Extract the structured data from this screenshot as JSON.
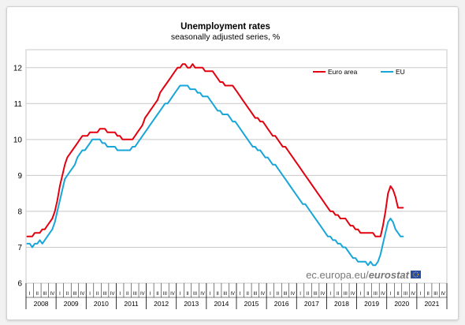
{
  "chart_data": {
    "type": "line",
    "title": "Unemployment rates",
    "subtitle": "seasonally adjusted series, %",
    "ylim": [
      6,
      12.5
    ],
    "yticks": [
      "6",
      "7",
      "8",
      "9",
      "10",
      "11",
      "12"
    ],
    "grid": "horizontal",
    "legend_position": "top-right",
    "x_start": "2008-01",
    "years": [
      "2008",
      "2009",
      "2010",
      "2011",
      "2012",
      "2013",
      "2014",
      "2015",
      "2016",
      "2017",
      "2018",
      "2019",
      "2020",
      "2021"
    ],
    "quarters": [
      "I",
      "II",
      "III",
      "IV"
    ],
    "watermark": {
      "domain": "ec.europa.eu/",
      "brand": "eurostat"
    },
    "series": [
      {
        "name": "Euro area",
        "color": "#e3000f",
        "values": [
          7.3,
          7.3,
          7.3,
          7.4,
          7.4,
          7.4,
          7.5,
          7.5,
          7.6,
          7.7,
          7.8,
          8.0,
          8.3,
          8.7,
          9.0,
          9.3,
          9.5,
          9.6,
          9.7,
          9.8,
          9.9,
          10.0,
          10.1,
          10.1,
          10.1,
          10.2,
          10.2,
          10.2,
          10.2,
          10.3,
          10.3,
          10.3,
          10.2,
          10.2,
          10.2,
          10.2,
          10.1,
          10.1,
          10.0,
          10.0,
          10.0,
          10.0,
          10.0,
          10.1,
          10.2,
          10.3,
          10.4,
          10.6,
          10.7,
          10.8,
          10.9,
          11.0,
          11.1,
          11.3,
          11.4,
          11.5,
          11.6,
          11.7,
          11.8,
          11.9,
          12.0,
          12.0,
          12.1,
          12.1,
          12.0,
          12.0,
          12.1,
          12.0,
          12.0,
          12.0,
          12.0,
          11.9,
          11.9,
          11.9,
          11.9,
          11.8,
          11.7,
          11.6,
          11.6,
          11.5,
          11.5,
          11.5,
          11.5,
          11.4,
          11.3,
          11.2,
          11.1,
          11.0,
          10.9,
          10.8,
          10.7,
          10.6,
          10.6,
          10.5,
          10.5,
          10.4,
          10.3,
          10.2,
          10.1,
          10.1,
          10.0,
          9.9,
          9.8,
          9.8,
          9.7,
          9.6,
          9.5,
          9.4,
          9.3,
          9.2,
          9.1,
          9.0,
          8.9,
          8.8,
          8.7,
          8.6,
          8.5,
          8.4,
          8.3,
          8.2,
          8.1,
          8.0,
          8.0,
          7.9,
          7.9,
          7.8,
          7.8,
          7.8,
          7.7,
          7.6,
          7.6,
          7.5,
          7.5,
          7.4,
          7.4,
          7.4,
          7.4,
          7.4,
          7.4,
          7.3,
          7.3,
          7.3,
          7.6,
          8.0,
          8.5,
          8.7,
          8.6,
          8.4,
          8.1,
          8.1,
          8.1
        ]
      },
      {
        "name": "EU",
        "color": "#18a6d9",
        "values": [
          7.1,
          7.1,
          7.0,
          7.1,
          7.1,
          7.2,
          7.1,
          7.2,
          7.3,
          7.4,
          7.5,
          7.7,
          8.0,
          8.3,
          8.6,
          8.9,
          9.0,
          9.1,
          9.2,
          9.3,
          9.5,
          9.6,
          9.7,
          9.7,
          9.8,
          9.9,
          10.0,
          10.0,
          10.0,
          10.0,
          9.9,
          9.9,
          9.8,
          9.8,
          9.8,
          9.8,
          9.7,
          9.7,
          9.7,
          9.7,
          9.7,
          9.7,
          9.8,
          9.8,
          9.9,
          10.0,
          10.1,
          10.2,
          10.3,
          10.4,
          10.5,
          10.6,
          10.7,
          10.8,
          10.9,
          11.0,
          11.0,
          11.1,
          11.2,
          11.3,
          11.4,
          11.5,
          11.5,
          11.5,
          11.5,
          11.4,
          11.4,
          11.4,
          11.3,
          11.3,
          11.2,
          11.2,
          11.2,
          11.1,
          11.0,
          10.9,
          10.8,
          10.8,
          10.7,
          10.7,
          10.7,
          10.6,
          10.5,
          10.5,
          10.4,
          10.3,
          10.2,
          10.1,
          10.0,
          9.9,
          9.8,
          9.8,
          9.7,
          9.7,
          9.6,
          9.5,
          9.5,
          9.4,
          9.3,
          9.3,
          9.2,
          9.1,
          9.0,
          8.9,
          8.8,
          8.7,
          8.6,
          8.5,
          8.4,
          8.3,
          8.2,
          8.2,
          8.1,
          8.0,
          7.9,
          7.8,
          7.7,
          7.6,
          7.5,
          7.4,
          7.3,
          7.3,
          7.2,
          7.2,
          7.1,
          7.1,
          7.0,
          7.0,
          6.9,
          6.8,
          6.7,
          6.7,
          6.6,
          6.6,
          6.6,
          6.6,
          6.5,
          6.6,
          6.5,
          6.5,
          6.6,
          6.8,
          7.1,
          7.4,
          7.7,
          7.8,
          7.7,
          7.5,
          7.4,
          7.3,
          7.3
        ]
      }
    ]
  }
}
